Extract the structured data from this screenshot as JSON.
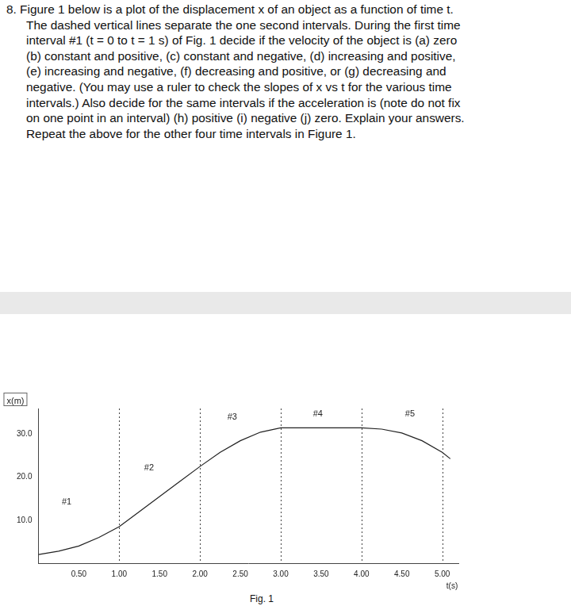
{
  "document": {
    "question_lines": [
      "8. Figure 1 below is a plot of the displacement x of an object as a function of time t.",
      "The dashed vertical lines separate the one second intervals. During the first time",
      "interval #1 (t = 0 to t = 1 s) of Fig. 1 decide if the velocity of the object is (a) zero",
      "(b) constant and positive, (c) constant and negative, (d) increasing and positive,",
      "(e) increasing and negative, (f) decreasing and positive, or (g) decreasing and",
      "negative. (You may use a ruler to check the slopes of x vs t for the various time",
      "intervals.) Also decide for the same intervals if the acceleration is (note do not fix",
      "on one point in an interval) (h) positive (i) negative (j) zero. Explain your answers.",
      "Repeat the above for the other four time intervals in Figure 1."
    ],
    "caption": "Fig. 1"
  },
  "chart_data": {
    "type": "line",
    "x": [
      0,
      0.25,
      0.5,
      0.75,
      1.0,
      1.25,
      1.5,
      1.75,
      2.0,
      2.25,
      2.5,
      2.75,
      3.0,
      3.25,
      3.5,
      3.75,
      4.0,
      4.25,
      4.5,
      4.75,
      5.0,
      5.1
    ],
    "values": [
      2.0,
      2.8,
      4.0,
      6.0,
      8.5,
      12.0,
      15.5,
      19.0,
      22.5,
      25.8,
      28.5,
      30.5,
      31.5,
      31.5,
      31.5,
      31.5,
      31.5,
      31.2,
      30.3,
      28.5,
      25.8,
      24.3
    ],
    "color": "#222222",
    "marker": "none",
    "line_style": "solid",
    "x_label": "t(s)",
    "y_label": "x(m)",
    "xlim": [
      0,
      5.2
    ],
    "ylim": [
      0,
      36
    ],
    "xticks": [
      {
        "value": 0.5,
        "label": "0.50"
      },
      {
        "value": 1.0,
        "label": "1.00"
      },
      {
        "value": 1.5,
        "label": "1.50"
      },
      {
        "value": 2.0,
        "label": "2.00"
      },
      {
        "value": 2.5,
        "label": "2.50"
      },
      {
        "value": 3.0,
        "label": "3.00"
      },
      {
        "value": 3.5,
        "label": "3.50"
      },
      {
        "value": 4.0,
        "label": "4.00"
      },
      {
        "value": 4.5,
        "label": "4.50"
      },
      {
        "value": 5.0,
        "label": "5.00"
      }
    ],
    "yticks": [
      {
        "value": 10,
        "label": "10.0"
      },
      {
        "value": 20,
        "label": "20.0"
      },
      {
        "value": 30,
        "label": "30.0"
      }
    ],
    "grid": false,
    "vlines": [
      1,
      2,
      3,
      4,
      5
    ],
    "annotations": [
      {
        "text": "#1",
        "x": 0.35,
        "y": 14.3
      },
      {
        "text": "#2",
        "x": 1.37,
        "y": 22.2
      },
      {
        "text": "#3",
        "x": 2.4,
        "y": 33.9
      },
      {
        "text": "#4",
        "x": 3.46,
        "y": 34.8
      },
      {
        "text": "#5",
        "x": 4.6,
        "y": 34.8
      }
    ]
  }
}
